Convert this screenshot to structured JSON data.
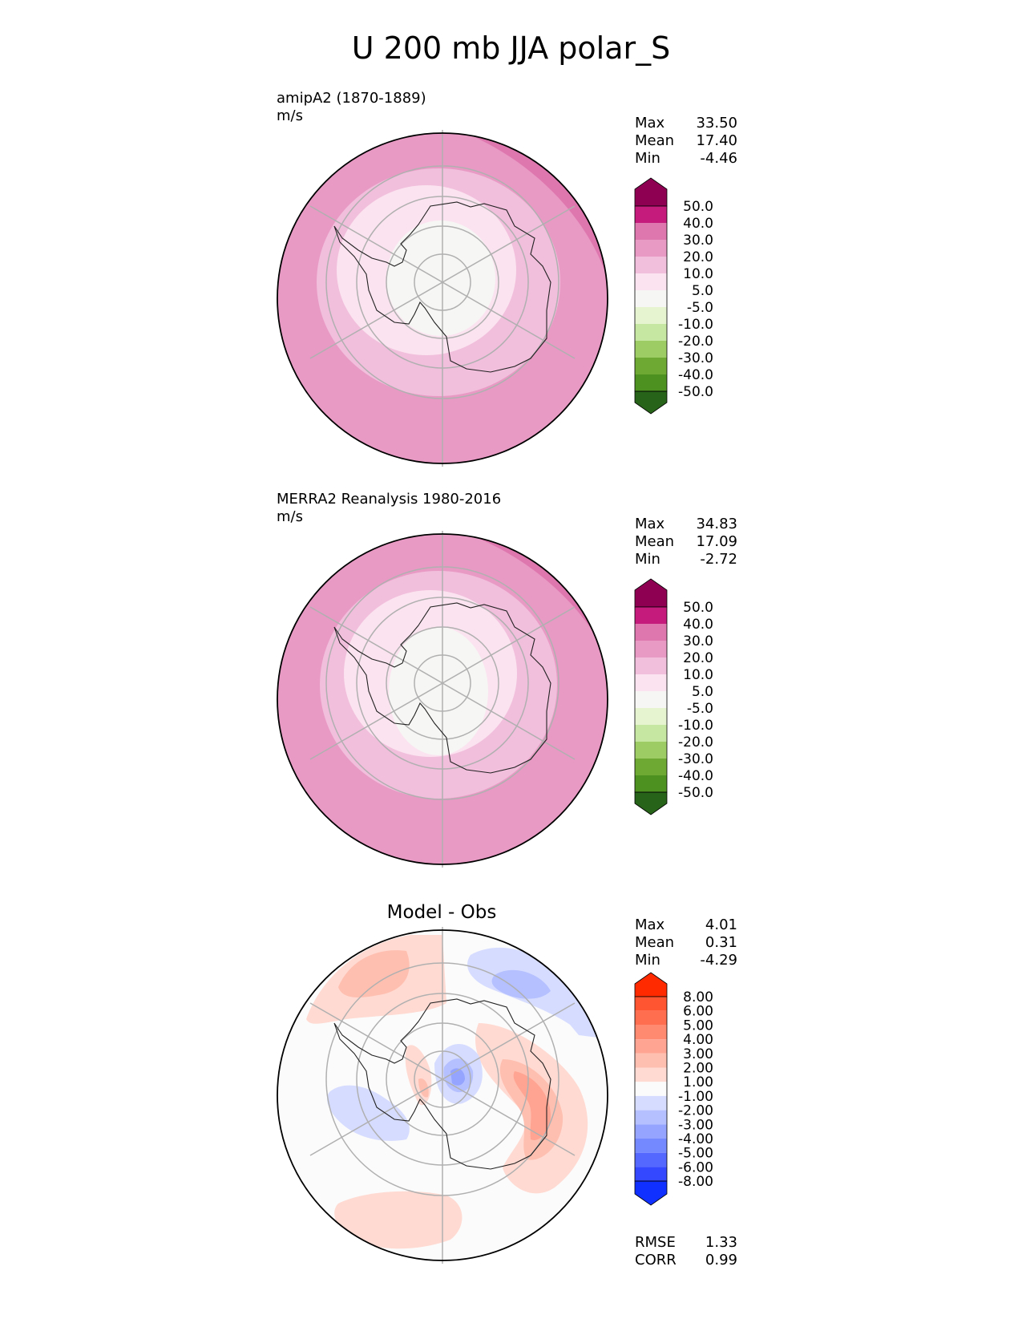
{
  "figure_title": "U 200 mb JJA polar_S",
  "panels": {
    "model": {
      "name": "amipA2 (1870-1889)",
      "units": "m/s",
      "stats": {
        "max_label": "Max",
        "max": "33.50",
        "mean_label": "Mean",
        "mean": "17.40",
        "min_label": "Min",
        "min": "-4.46"
      }
    },
    "obs": {
      "name": "MERRA2 Reanalysis 1980-2016",
      "units": "m/s",
      "stats": {
        "max_label": "Max",
        "max": "34.83",
        "mean_label": "Mean",
        "mean": "17.09",
        "min_label": "Min",
        "min": "-2.72"
      }
    },
    "diff": {
      "title": "Model - Obs",
      "stats": {
        "max_label": "Max",
        "max": "4.01",
        "mean_label": "Mean",
        "mean": "0.31",
        "min_label": "Min",
        "min": "-4.29"
      },
      "metrics": {
        "rmse_label": "RMSE",
        "rmse": "1.33",
        "corr_label": "CORR",
        "corr": "0.99"
      }
    }
  },
  "colorbars": {
    "field": {
      "ticks": [
        "50.0",
        "40.0",
        "30.0",
        "20.0",
        "10.0",
        "5.0",
        "-5.0",
        "-10.0",
        "-20.0",
        "-30.0",
        "-40.0",
        "-50.0"
      ],
      "colors": [
        "#8e0152",
        "#c51b7d",
        "#de77ae",
        "#e899c4",
        "#f1bedc",
        "#fbe3ef",
        "#f6f6f4",
        "#e6f5d0",
        "#c6e7a1",
        "#9dcc64",
        "#6ea933",
        "#4d9221",
        "#276419"
      ]
    },
    "diff": {
      "ticks": [
        "8.00",
        "6.00",
        "5.00",
        "4.00",
        "3.00",
        "2.00",
        "1.00",
        "-1.00",
        "-2.00",
        "-3.00",
        "-4.00",
        "-5.00",
        "-6.00",
        "-8.00"
      ],
      "colors": [
        "#ff2a00",
        "#ff5530",
        "#ff6f4f",
        "#ff8a70",
        "#ffa492",
        "#ffbfb0",
        "#ffdad2",
        "#fbfbfb",
        "#d6dcff",
        "#b4c0ff",
        "#94a4ff",
        "#7488ff",
        "#5468ff",
        "#3448ff",
        "#1030ff"
      ]
    }
  },
  "chart_data": [
    {
      "type": "heatmap",
      "title": "amipA2 (1870-1889)",
      "units": "m/s",
      "projection": "south polar stereographic",
      "max": 33.5,
      "mean": 17.4,
      "min": -4.46,
      "levels": [
        -50,
        -40,
        -30,
        -20,
        -10,
        -5,
        5,
        10,
        20,
        30,
        40,
        50
      ]
    },
    {
      "type": "heatmap",
      "title": "MERRA2 Reanalysis 1980-2016",
      "units": "m/s",
      "projection": "south polar stereographic",
      "max": 34.83,
      "mean": 17.09,
      "min": -2.72,
      "levels": [
        -50,
        -40,
        -30,
        -20,
        -10,
        -5,
        5,
        10,
        20,
        30,
        40,
        50
      ]
    },
    {
      "type": "heatmap",
      "title": "Model - Obs",
      "projection": "south polar stereographic",
      "max": 4.01,
      "mean": 0.31,
      "min": -4.29,
      "rmse": 1.33,
      "corr": 0.99,
      "levels": [
        -8,
        -6,
        -5,
        -4,
        -3,
        -2,
        -1,
        1,
        2,
        3,
        4,
        5,
        6,
        8
      ]
    }
  ]
}
